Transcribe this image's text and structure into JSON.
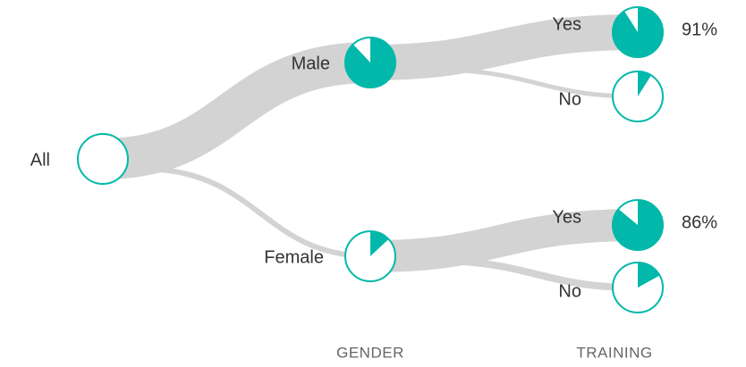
{
  "nodes": [
    {
      "label": "All",
      "share": 0
    },
    {
      "label": "Male",
      "share": 88
    },
    {
      "label": "Female",
      "share": 13
    },
    {
      "label": "Yes",
      "share": 91,
      "value_label": "91%"
    },
    {
      "label": "No",
      "share": 9
    },
    {
      "label": "Yes",
      "share": 86,
      "value_label": "86%"
    },
    {
      "label": "No",
      "share": 17
    }
  ],
  "levels": [
    "GENDER",
    "TRAINING"
  ]
}
